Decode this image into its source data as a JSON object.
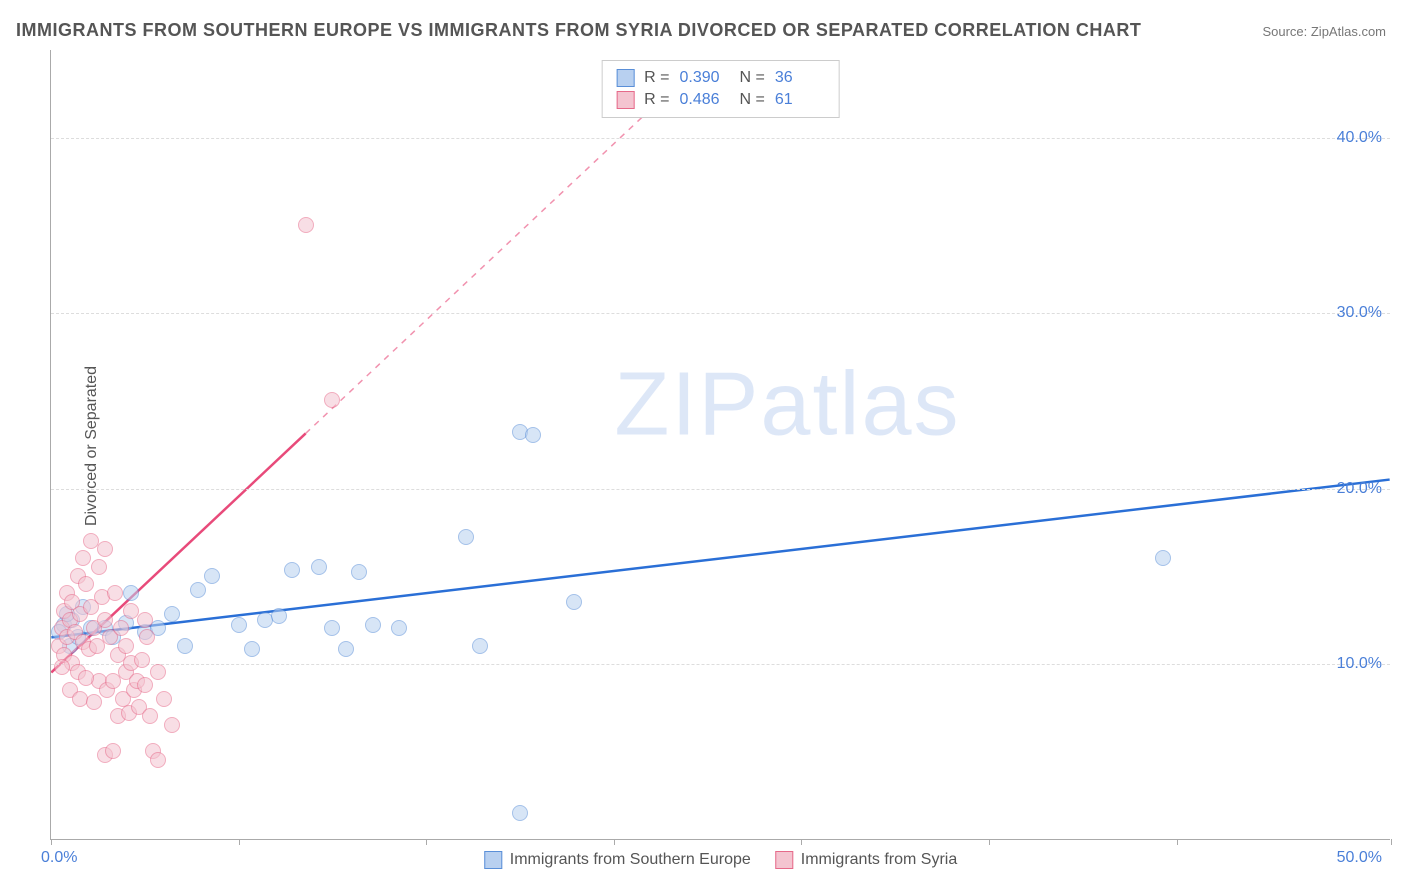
{
  "title": "IMMIGRANTS FROM SOUTHERN EUROPE VS IMMIGRANTS FROM SYRIA DIVORCED OR SEPARATED CORRELATION CHART",
  "source": "Source: ZipAtlas.com",
  "ylabel": "Divorced or Separated",
  "watermark_a": "ZIP",
  "watermark_b": "atlas",
  "chart": {
    "type": "scatter",
    "xlim": [
      0,
      50
    ],
    "ylim": [
      0,
      45
    ],
    "y_ticks": [
      10,
      20,
      30,
      40
    ],
    "y_tick_labels": [
      "10.0%",
      "20.0%",
      "30.0%",
      "40.0%"
    ],
    "x_ticks": [
      0,
      7,
      14,
      21,
      28,
      35,
      42,
      50
    ],
    "x_label_min": "0.0%",
    "x_label_max": "50.0%",
    "grid_color": "#dddddd",
    "axis_color": "#aaaaaa",
    "background_color": "#ffffff",
    "marker_radius": 8,
    "marker_opacity": 0.55,
    "marker_border_width": 1.2
  },
  "series": [
    {
      "id": "southern_europe",
      "label": "Immigrants from Southern Europe",
      "color_fill": "#b8d0f0",
      "color_border": "#5a8fd8",
      "R": "0.390",
      "N": "36",
      "trend": {
        "x1": 0,
        "y1": 11.5,
        "x2": 50,
        "y2": 20.5,
        "solid_until_x": 50,
        "color": "#2a6fd6",
        "width": 2.5
      },
      "points": [
        [
          0.5,
          12.2
        ],
        [
          0.7,
          11.0
        ],
        [
          0.8,
          12.5
        ],
        [
          1.0,
          11.5
        ],
        [
          1.2,
          13.2
        ],
        [
          1.5,
          12.0
        ],
        [
          2.0,
          12.0
        ],
        [
          2.3,
          11.5
        ],
        [
          2.8,
          12.3
        ],
        [
          3.0,
          14.0
        ],
        [
          3.5,
          11.8
        ],
        [
          4.0,
          12.0
        ],
        [
          4.5,
          12.8
        ],
        [
          5.0,
          11.0
        ],
        [
          5.5,
          14.2
        ],
        [
          6.0,
          15.0
        ],
        [
          7.0,
          12.2
        ],
        [
          7.5,
          10.8
        ],
        [
          8.0,
          12.5
        ],
        [
          8.5,
          12.7
        ],
        [
          9.0,
          15.3
        ],
        [
          10.0,
          15.5
        ],
        [
          10.5,
          12.0
        ],
        [
          11.0,
          10.8
        ],
        [
          11.5,
          15.2
        ],
        [
          12.0,
          12.2
        ],
        [
          13.0,
          12.0
        ],
        [
          15.5,
          17.2
        ],
        [
          16.0,
          11.0
        ],
        [
          17.5,
          23.2
        ],
        [
          18.0,
          23.0
        ],
        [
          19.5,
          13.5
        ],
        [
          17.5,
          1.5
        ],
        [
          41.5,
          16.0
        ],
        [
          0.3,
          11.8
        ],
        [
          0.6,
          12.8
        ]
      ]
    },
    {
      "id": "syria",
      "label": "Immigrants from Syria",
      "color_fill": "#f4c4d0",
      "color_border": "#e66a8a",
      "R": "0.486",
      "N": "61",
      "trend": {
        "x1": 0,
        "y1": 9.5,
        "x2": 23,
        "y2": 42.5,
        "solid_until_x": 9.5,
        "color": "#e84a7a",
        "width": 2.5
      },
      "points": [
        [
          0.3,
          11.0
        ],
        [
          0.4,
          12.0
        ],
        [
          0.5,
          10.5
        ],
        [
          0.5,
          13.0
        ],
        [
          0.6,
          11.5
        ],
        [
          0.6,
          14.0
        ],
        [
          0.7,
          12.5
        ],
        [
          0.8,
          10.0
        ],
        [
          0.8,
          13.5
        ],
        [
          0.9,
          11.8
        ],
        [
          1.0,
          15.0
        ],
        [
          1.0,
          9.5
        ],
        [
          1.1,
          12.8
        ],
        [
          1.2,
          11.2
        ],
        [
          1.2,
          16.0
        ],
        [
          1.3,
          14.5
        ],
        [
          1.4,
          10.8
        ],
        [
          1.5,
          13.2
        ],
        [
          1.5,
          17.0
        ],
        [
          1.6,
          12.0
        ],
        [
          1.7,
          11.0
        ],
        [
          1.8,
          15.5
        ],
        [
          1.8,
          9.0
        ],
        [
          1.9,
          13.8
        ],
        [
          2.0,
          12.5
        ],
        [
          2.0,
          16.5
        ],
        [
          2.1,
          8.5
        ],
        [
          2.2,
          11.5
        ],
        [
          2.3,
          9.0
        ],
        [
          2.4,
          14.0
        ],
        [
          2.5,
          7.0
        ],
        [
          2.5,
          10.5
        ],
        [
          2.6,
          12.0
        ],
        [
          2.7,
          8.0
        ],
        [
          2.8,
          9.5
        ],
        [
          2.8,
          11.0
        ],
        [
          2.9,
          7.2
        ],
        [
          3.0,
          10.0
        ],
        [
          3.0,
          13.0
        ],
        [
          3.1,
          8.5
        ],
        [
          3.2,
          9.0
        ],
        [
          3.3,
          7.5
        ],
        [
          3.4,
          10.2
        ],
        [
          3.5,
          8.8
        ],
        [
          3.5,
          12.5
        ],
        [
          3.7,
          7.0
        ],
        [
          3.8,
          5.0
        ],
        [
          4.0,
          9.5
        ],
        [
          4.0,
          4.5
        ],
        [
          4.2,
          8.0
        ],
        [
          4.5,
          6.5
        ],
        [
          2.0,
          4.8
        ],
        [
          2.3,
          5.0
        ],
        [
          0.4,
          9.8
        ],
        [
          0.7,
          8.5
        ],
        [
          1.1,
          8.0
        ],
        [
          1.3,
          9.2
        ],
        [
          1.6,
          7.8
        ],
        [
          9.5,
          35.0
        ],
        [
          10.5,
          25.0
        ],
        [
          3.6,
          11.5
        ]
      ]
    }
  ],
  "stats_legend": {
    "R_label": "R =",
    "N_label": "N ="
  }
}
